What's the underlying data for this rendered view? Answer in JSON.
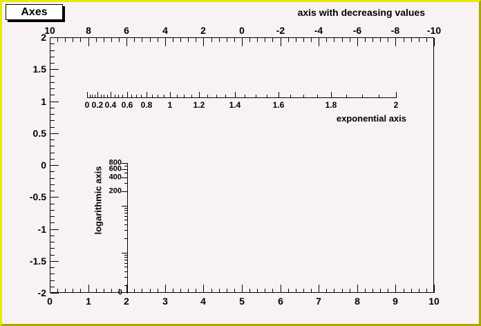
{
  "title_box": {
    "label": "Axes"
  },
  "colors": {
    "canvas_background": "#f9f2f3",
    "border_highlight": "#e9e900",
    "border_shadow": "#a9a900",
    "ink": "#000000",
    "title_box_fill": "#ffffff"
  },
  "chart_data": {
    "type": "axes-demo",
    "title": "Axes",
    "grid": false,
    "frame": {
      "x_range": [
        0,
        10
      ],
      "y_range": [
        -2,
        2
      ],
      "x_major_ticks": [
        0,
        1,
        2,
        3,
        4,
        5,
        6,
        7,
        8,
        9,
        10
      ],
      "x_labels": [
        "0",
        "1",
        "2",
        "3",
        "4",
        "5",
        "6",
        "7",
        "8",
        "9",
        "10"
      ],
      "x_minor_step": 0.2,
      "y_major_ticks": [
        2,
        1.5,
        1,
        0.5,
        0,
        -0.5,
        -1,
        -1.5,
        -2
      ],
      "y_labels": [
        "2",
        "1.5",
        "1",
        "0.5",
        "0",
        "-0.5",
        "-1",
        "-1.5",
        "-2"
      ],
      "y_minor_step": 0.1
    },
    "axes": {
      "top": {
        "title": "axis with decreasing values",
        "scale": "linear",
        "orientation": "horizontal",
        "range": [
          10,
          -10
        ],
        "major_ticks": [
          10,
          8,
          6,
          4,
          2,
          0,
          -2,
          -4,
          -6,
          -8,
          -10
        ],
        "labels": [
          "10",
          "8",
          "6",
          "4",
          "2",
          "0",
          "-2",
          "-4",
          "-6",
          "-8",
          "-10"
        ],
        "minor_step": 0.4,
        "tick_side": "inward-down",
        "label_side": "above"
      },
      "exponential": {
        "title": "exponential axis",
        "scale": "exponential",
        "orientation": "horizontal",
        "range": [
          0,
          2
        ],
        "major_ticks": [
          0,
          0.2,
          0.4,
          0.6,
          0.8,
          1,
          1.2,
          1.4,
          1.6,
          1.8,
          2
        ],
        "labels": [
          "0",
          "0.2",
          "0.4",
          "0.6",
          "0.8",
          "1",
          "1.2",
          "1.4",
          "1.6",
          "1.8",
          "2"
        ],
        "minor_step": 0.05,
        "tick_side": "up",
        "label_side": "below"
      },
      "logarithmic": {
        "title": "logarithmic axis",
        "scale": "log",
        "orientation": "vertical",
        "range_top": 800,
        "range_bottom_label": "0",
        "major_ticks": [
          800,
          600,
          400,
          200
        ],
        "labels": [
          "800",
          "600",
          "400",
          "200"
        ],
        "long_unlabeled_ticks": [
          100,
          10
        ],
        "minor_ticks": [
          700,
          500,
          300,
          90,
          80,
          70,
          60,
          50,
          40,
          30,
          20,
          9,
          8,
          7,
          6,
          5,
          4,
          3,
          2
        ],
        "end_label": "0",
        "tick_side": "left",
        "label_side": "left"
      }
    }
  }
}
